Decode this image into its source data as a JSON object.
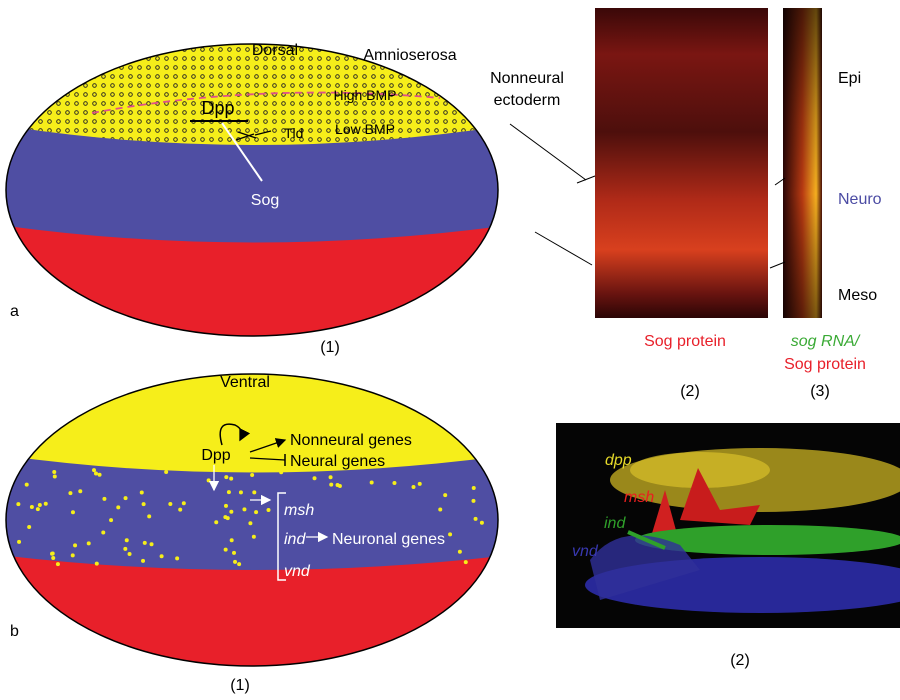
{
  "panel_a": {
    "label": "a",
    "orientation": "Dorsal",
    "amnioserosa": "Amnioserosa",
    "nonneural": [
      "Nonneural",
      "ectoderm"
    ],
    "high_bmp": "High BMP",
    "low_bmp": "Low BMP",
    "dpp": "Dpp",
    "tld": "Tld",
    "sog": "Sog",
    "sub1": "(1)",
    "image_labels": {
      "epi": "Epi",
      "neuro": "Neuro",
      "meso": "Meso",
      "sog_protein": "Sog protein",
      "sog_rna": "sog RNA/",
      "sog_protein_2": "Sog protein",
      "sub2": "(2)",
      "sub3": "(3)"
    }
  },
  "panel_b": {
    "label": "b",
    "orientation": "Ventral",
    "dpp": "Dpp",
    "nonneural_genes": "Nonneural genes",
    "neural_genes": "Neural genes",
    "msh": "msh",
    "ind": "ind",
    "vnd": "vnd",
    "neuronal_genes": "Neuronal genes",
    "sub1": "(1)",
    "image_labels": {
      "dpp": "dpp",
      "msh": "msh",
      "ind": "ind",
      "vnd": "vnd",
      "sub2": "(2)"
    }
  }
}
